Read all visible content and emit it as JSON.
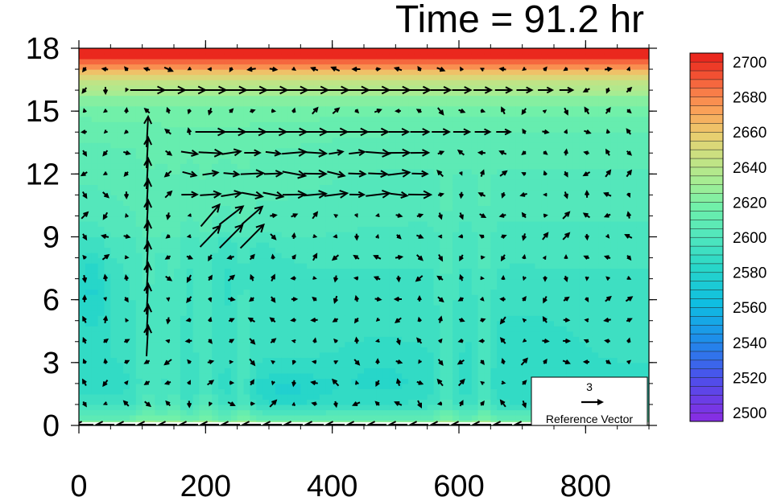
{
  "chart_data": {
    "type": "heatmap",
    "title": "Time = 91.2 hr",
    "xlabel": "",
    "ylabel": "",
    "xlim": [
      0,
      900
    ],
    "ylim": [
      0,
      18
    ],
    "x_ticks": [
      "0",
      "200",
      "400",
      "600",
      "800"
    ],
    "x_tick_values": [
      0,
      200,
      400,
      600,
      800
    ],
    "y_ticks": [
      "0",
      "3",
      "6",
      "9",
      "12",
      "15",
      "18"
    ],
    "y_tick_values": [
      0,
      3,
      6,
      9,
      12,
      15,
      18
    ],
    "colorbar": {
      "levels": [
        2495,
        2500,
        2505,
        2510,
        2515,
        2520,
        2525,
        2530,
        2535,
        2540,
        2545,
        2550,
        2555,
        2560,
        2565,
        2570,
        2575,
        2580,
        2585,
        2590,
        2595,
        2600,
        2605,
        2610,
        2615,
        2620,
        2625,
        2630,
        2635,
        2640,
        2645,
        2650,
        2655,
        2660,
        2665,
        2670,
        2675,
        2680,
        2685,
        2690,
        2695,
        2700,
        2705
      ],
      "labels": [
        "2700",
        "2680",
        "2660",
        "2640",
        "2620",
        "2600",
        "2580",
        "2560",
        "2540",
        "2520",
        "2500"
      ],
      "label_values": [
        2700,
        2680,
        2660,
        2640,
        2620,
        2600,
        2580,
        2560,
        2540,
        2520,
        2500
      ]
    },
    "field_profile": {
      "heights": [
        0,
        0.3,
        1,
        2,
        3,
        5,
        7,
        9,
        10.5,
        12,
        13.5,
        14.5,
        15.5,
        16.3,
        16.8,
        17.2,
        17.6,
        18
      ],
      "values": [
        2630,
        2610,
        2592,
        2588,
        2590,
        2592,
        2594,
        2598,
        2602,
        2604,
        2608,
        2612,
        2622,
        2640,
        2660,
        2680,
        2700,
        2705
      ]
    },
    "vector_jets": [
      {
        "y": 15.7,
        "x_start": 80,
        "x_end": 780,
        "speed": 5
      },
      {
        "y": 14.5,
        "x_start": 180,
        "x_end": 670,
        "speed": 4
      }
    ],
    "reference_vector": {
      "magnitude": "3",
      "label": "Reference Vector"
    }
  }
}
